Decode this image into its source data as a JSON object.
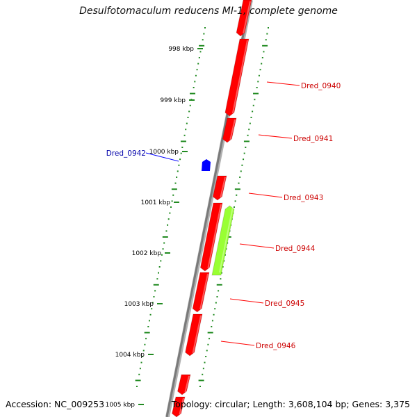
{
  "title": "Desulfotomaculum reducens MI-1, complete genome",
  "accession": "Accession: NC_009253",
  "summary": "Topology: circular; Length: 3,608,104 bp; Genes: 3,375",
  "colors": {
    "forward_gene": "#ff0000",
    "reverse_gene": "#0000ff",
    "feature": "#99ff33",
    "backbone": "#888888",
    "tick": "#228b22",
    "forward_label": "#cc0000",
    "reverse_label": "#0000aa"
  },
  "kbp_ticks": [
    "998 kbp",
    "999 kbp",
    "1000 kbp",
    "1001 kbp",
    "1002 kbp",
    "1003 kbp",
    "1004 kbp",
    "1005 kbp"
  ],
  "gene_labels": [
    {
      "text": "Dred_0940",
      "strand": "forward"
    },
    {
      "text": "Dred_0941",
      "strand": "forward"
    },
    {
      "text": "Dred_0942",
      "strand": "reverse"
    },
    {
      "text": "Dred_0943",
      "strand": "forward"
    },
    {
      "text": "Dred_0944",
      "strand": "forward"
    },
    {
      "text": "Dred_0945",
      "strand": "forward"
    },
    {
      "text": "Dred_0946",
      "strand": "forward"
    }
  ]
}
